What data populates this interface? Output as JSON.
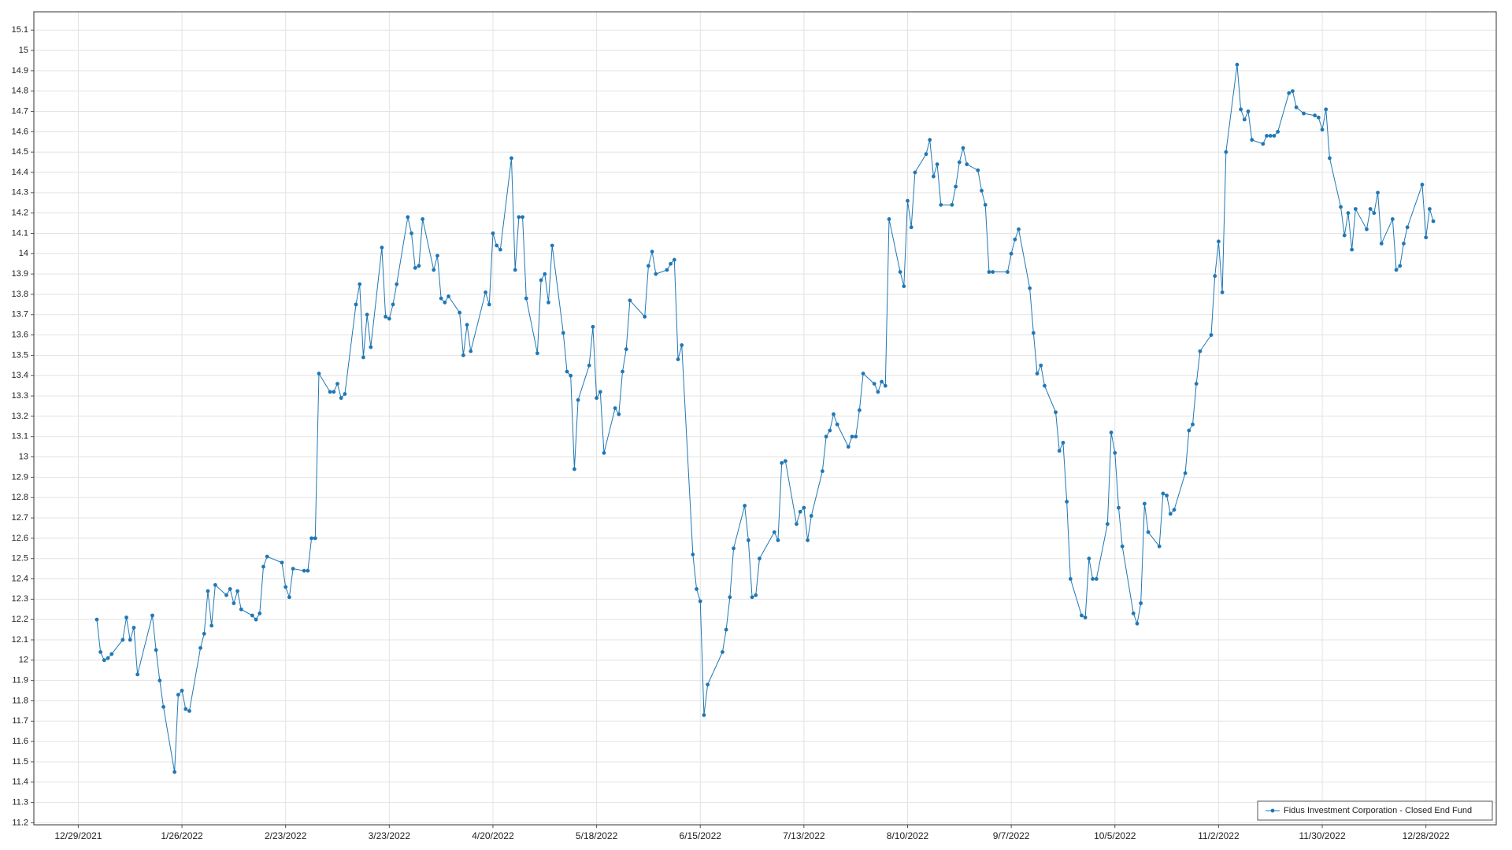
{
  "chart_data": {
    "type": "line",
    "x": [
      "1/3/2022",
      "1/4/2022",
      "1/5/2022",
      "1/6/2022",
      "1/7/2022",
      "1/10/2022",
      "1/11/2022",
      "1/12/2022",
      "1/13/2022",
      "1/14/2022",
      "1/18/2022",
      "1/19/2022",
      "1/20/2022",
      "1/21/2022",
      "1/24/2022",
      "1/25/2022",
      "1/26/2022",
      "1/27/2022",
      "1/28/2022",
      "1/31/2022",
      "2/1/2022",
      "2/2/2022",
      "2/3/2022",
      "2/4/2022",
      "2/7/2022",
      "2/8/2022",
      "2/9/2022",
      "2/10/2022",
      "2/11/2022",
      "2/14/2022",
      "2/15/2022",
      "2/16/2022",
      "2/17/2022",
      "2/18/2022",
      "2/22/2022",
      "2/23/2022",
      "2/24/2022",
      "2/25/2022",
      "2/28/2022",
      "3/1/2022",
      "3/2/2022",
      "3/3/2022",
      "3/4/2022",
      "3/7/2022",
      "3/8/2022",
      "3/9/2022",
      "3/10/2022",
      "3/11/2022",
      "3/14/2022",
      "3/15/2022",
      "3/16/2022",
      "3/17/2022",
      "3/18/2022",
      "3/21/2022",
      "3/22/2022",
      "3/23/2022",
      "3/24/2022",
      "3/25/2022",
      "3/28/2022",
      "3/29/2022",
      "3/30/2022",
      "3/31/2022",
      "4/1/2022",
      "4/4/2022",
      "4/5/2022",
      "4/6/2022",
      "4/7/2022",
      "4/8/2022",
      "4/11/2022",
      "4/12/2022",
      "4/13/2022",
      "4/14/2022",
      "4/18/2022",
      "4/19/2022",
      "4/20/2022",
      "4/21/2022",
      "4/22/2022",
      "4/25/2022",
      "4/26/2022",
      "4/27/2022",
      "4/28/2022",
      "4/29/2022",
      "5/2/2022",
      "5/3/2022",
      "5/4/2022",
      "5/5/2022",
      "5/6/2022",
      "5/9/2022",
      "5/10/2022",
      "5/11/2022",
      "5/12/2022",
      "5/13/2022",
      "5/16/2022",
      "5/17/2022",
      "5/18/2022",
      "5/19/2022",
      "5/20/2022",
      "5/23/2022",
      "5/24/2022",
      "5/25/2022",
      "5/26/2022",
      "5/27/2022",
      "5/31/2022",
      "6/1/2022",
      "6/2/2022",
      "6/3/2022",
      "6/6/2022",
      "6/7/2022",
      "6/8/2022",
      "6/9/2022",
      "6/10/2022",
      "6/13/2022",
      "6/14/2022",
      "6/15/2022",
      "6/16/2022",
      "6/17/2022",
      "6/21/2022",
      "6/22/2022",
      "6/23/2022",
      "6/24/2022",
      "6/27/2022",
      "6/28/2022",
      "6/29/2022",
      "6/30/2022",
      "7/1/2022",
      "7/5/2022",
      "7/6/2022",
      "7/7/2022",
      "7/8/2022",
      "7/11/2022",
      "7/12/2022",
      "7/13/2022",
      "7/14/2022",
      "7/15/2022",
      "7/18/2022",
      "7/19/2022",
      "7/20/2022",
      "7/21/2022",
      "7/22/2022",
      "7/25/2022",
      "7/26/2022",
      "7/27/2022",
      "7/28/2022",
      "7/29/2022",
      "8/1/2022",
      "8/2/2022",
      "8/3/2022",
      "8/4/2022",
      "8/5/2022",
      "8/8/2022",
      "8/9/2022",
      "8/10/2022",
      "8/11/2022",
      "8/12/2022",
      "8/15/2022",
      "8/16/2022",
      "8/17/2022",
      "8/18/2022",
      "8/19/2022",
      "8/22/2022",
      "8/23/2022",
      "8/24/2022",
      "8/25/2022",
      "8/26/2022",
      "8/29/2022",
      "8/30/2022",
      "8/31/2022",
      "9/1/2022",
      "9/2/2022",
      "9/6/2022",
      "9/7/2022",
      "9/8/2022",
      "9/9/2022",
      "9/12/2022",
      "9/13/2022",
      "9/14/2022",
      "9/15/2022",
      "9/16/2022",
      "9/19/2022",
      "9/20/2022",
      "9/21/2022",
      "9/22/2022",
      "9/23/2022",
      "9/26/2022",
      "9/27/2022",
      "9/28/2022",
      "9/29/2022",
      "9/30/2022",
      "10/3/2022",
      "10/4/2022",
      "10/5/2022",
      "10/6/2022",
      "10/7/2022",
      "10/10/2022",
      "10/11/2022",
      "10/12/2022",
      "10/13/2022",
      "10/14/2022",
      "10/17/2022",
      "10/18/2022",
      "10/19/2022",
      "10/20/2022",
      "10/21/2022",
      "10/24/2022",
      "10/25/2022",
      "10/26/2022",
      "10/27/2022",
      "10/28/2022",
      "10/31/2022",
      "11/1/2022",
      "11/2/2022",
      "11/3/2022",
      "11/4/2022",
      "11/7/2022",
      "11/8/2022",
      "11/9/2022",
      "11/10/2022",
      "11/11/2022",
      "11/14/2022",
      "11/15/2022",
      "11/16/2022",
      "11/17/2022",
      "11/18/2022",
      "11/21/2022",
      "11/22/2022",
      "11/23/2022",
      "11/25/2022",
      "11/28/2022",
      "11/29/2022",
      "11/30/2022",
      "12/1/2022",
      "12/2/2022",
      "12/5/2022",
      "12/6/2022",
      "12/7/2022",
      "12/8/2022",
      "12/9/2022",
      "12/12/2022",
      "12/13/2022",
      "12/14/2022",
      "12/15/2022",
      "12/16/2022",
      "12/19/2022",
      "12/20/2022",
      "12/21/2022",
      "12/22/2022",
      "12/23/2022",
      "12/27/2022",
      "12/28/2022",
      "12/29/2022",
      "12/30/2022"
    ],
    "series": [
      {
        "name": "Fidus Investment Corporation - Closed End Fund",
        "color": "#1f77b4",
        "values": [
          12.2,
          12.04,
          12.0,
          12.01,
          12.03,
          12.1,
          12.21,
          12.1,
          12.16,
          11.93,
          12.22,
          12.05,
          11.9,
          11.77,
          11.45,
          11.83,
          11.85,
          11.76,
          11.75,
          12.06,
          12.13,
          12.34,
          12.17,
          12.37,
          12.32,
          12.35,
          12.28,
          12.34,
          12.25,
          12.22,
          12.2,
          12.23,
          12.46,
          12.51,
          12.48,
          12.36,
          12.31,
          12.45,
          12.44,
          12.44,
          12.6,
          12.6,
          13.41,
          13.32,
          13.32,
          13.36,
          13.29,
          13.31,
          13.75,
          13.85,
          13.49,
          13.7,
          13.54,
          14.03,
          13.69,
          13.68,
          13.75,
          13.85,
          14.18,
          14.1,
          13.93,
          13.94,
          14.17,
          13.92,
          13.99,
          13.78,
          13.76,
          13.79,
          13.71,
          13.5,
          13.65,
          13.52,
          13.81,
          13.75,
          14.1,
          14.04,
          14.02,
          14.47,
          13.92,
          14.18,
          14.18,
          13.78,
          13.51,
          13.87,
          13.9,
          13.76,
          14.04,
          13.61,
          13.42,
          13.4,
          12.94,
          13.28,
          13.45,
          13.64,
          13.29,
          13.32,
          13.02,
          13.24,
          13.21,
          13.42,
          13.53,
          13.77,
          13.69,
          13.94,
          14.01,
          13.9,
          13.92,
          13.95,
          13.97,
          13.48,
          13.55,
          12.52,
          12.35,
          12.29,
          11.73,
          11.88,
          12.04,
          12.15,
          12.31,
          12.55,
          12.76,
          12.59,
          12.31,
          12.32,
          12.5,
          12.63,
          12.59,
          12.97,
          12.98,
          12.67,
          12.73,
          12.75,
          12.59,
          12.71,
          12.93,
          13.1,
          13.13,
          13.21,
          13.16,
          13.05,
          13.1,
          13.1,
          13.23,
          13.41,
          13.36,
          13.32,
          13.37,
          13.35,
          14.17,
          13.91,
          13.84,
          14.26,
          14.13,
          14.4,
          14.49,
          14.56,
          14.38,
          14.44,
          14.24,
          14.24,
          14.33,
          14.45,
          14.52,
          14.44,
          14.41,
          14.31,
          14.24,
          13.91,
          13.91,
          13.91,
          14.0,
          14.07,
          14.12,
          13.83,
          13.61,
          13.41,
          13.45,
          13.35,
          13.22,
          13.03,
          13.07,
          12.78,
          12.4,
          12.22,
          12.21,
          12.5,
          12.4,
          12.4,
          12.67,
          13.12,
          13.02,
          12.75,
          12.56,
          12.23,
          12.18,
          12.28,
          12.77,
          12.63,
          12.56,
          12.82,
          12.81,
          12.72,
          12.74,
          12.92,
          13.13,
          13.16,
          13.36,
          13.52,
          13.6,
          13.89,
          14.06,
          13.81,
          14.5,
          14.93,
          14.71,
          14.66,
          14.7,
          14.56,
          14.54,
          14.58,
          14.58,
          14.58,
          14.6,
          14.79,
          14.8,
          14.72,
          14.69,
          14.68,
          14.67,
          14.61,
          14.71,
          14.47,
          14.23,
          14.09,
          14.2,
          14.02,
          14.22,
          14.12,
          14.22,
          14.2,
          14.3,
          14.05,
          14.17,
          13.92,
          13.94,
          14.05,
          14.13,
          14.34,
          14.08,
          14.22,
          14.16
        ]
      }
    ],
    "xlim": [
      "12/17/2021",
      "1/16/2023"
    ],
    "xticks": [
      "12/29/2021",
      "1/26/2022",
      "2/23/2022",
      "3/23/2022",
      "4/20/2022",
      "5/18/2022",
      "6/15/2022",
      "7/13/2022",
      "8/10/2022",
      "9/7/2022",
      "10/5/2022",
      "11/2/2022",
      "11/30/2022",
      "12/28/2022"
    ],
    "ylim": [
      11.19,
      15.19
    ],
    "yticks": [
      11.2,
      11.3,
      11.4,
      11.5,
      11.6,
      11.7,
      11.8,
      11.9,
      12,
      12.1,
      12.2,
      12.3,
      12.4,
      12.5,
      12.6,
      12.7,
      12.8,
      12.9,
      13,
      13.1,
      13.2,
      13.3,
      13.4,
      13.5,
      13.6,
      13.7,
      13.8,
      13.9,
      14,
      14.1,
      14.2,
      14.3,
      14.4,
      14.5,
      14.6,
      14.7,
      14.8,
      14.9,
      15,
      15.1
    ],
    "grid": true,
    "legend": "lower right"
  }
}
